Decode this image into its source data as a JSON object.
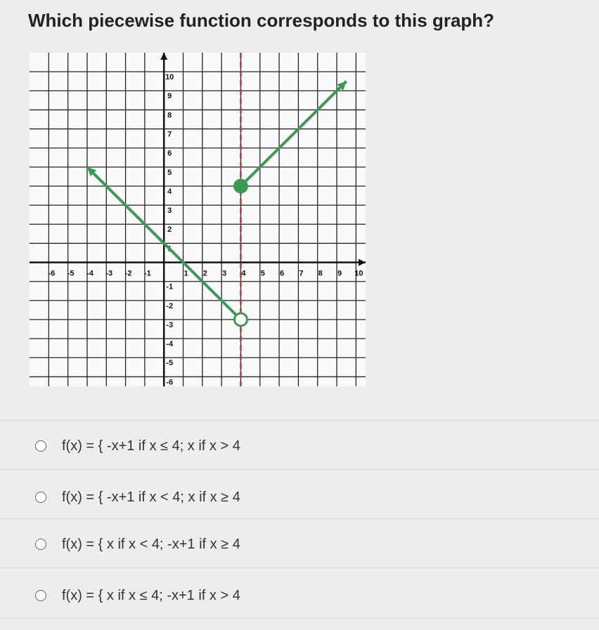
{
  "question": "Which piecewise function corresponds to this graph?",
  "chart_data": {
    "type": "line",
    "xlim": [
      -7,
      10.5
    ],
    "ylim": [
      -6.5,
      11
    ],
    "xticks": [
      -6,
      -5,
      -4,
      -3,
      -2,
      -1,
      1,
      2,
      3,
      4,
      5,
      6,
      7,
      8,
      9,
      10
    ],
    "yticks": [
      -6,
      -5,
      -4,
      -3,
      -2,
      -1,
      1,
      2,
      3,
      4,
      5,
      6,
      7,
      8,
      9,
      10
    ],
    "grid": true,
    "series": [
      {
        "color": "#3a9a52",
        "x": [
          -4,
          4
        ],
        "values": [
          5,
          -3
        ],
        "start": "arrow",
        "end": "open"
      },
      {
        "color": "#3a9a52",
        "x": [
          4,
          9.5
        ],
        "values": [
          4,
          9.5
        ],
        "start": "closed",
        "end": "arrow"
      }
    ],
    "vline": {
      "x": 4,
      "color": "#d9262e"
    }
  },
  "options": [
    "f(x) = { -x+1  if x ≤ 4;  x if x > 4",
    "f(x) = { -x+1  if x < 4;  x  if x ≥ 4",
    "f(x) = { x  if x < 4;   -x+1  if x ≥ 4",
    "f(x) = { x  if x ≤ 4;  -x+1  if x > 4"
  ]
}
